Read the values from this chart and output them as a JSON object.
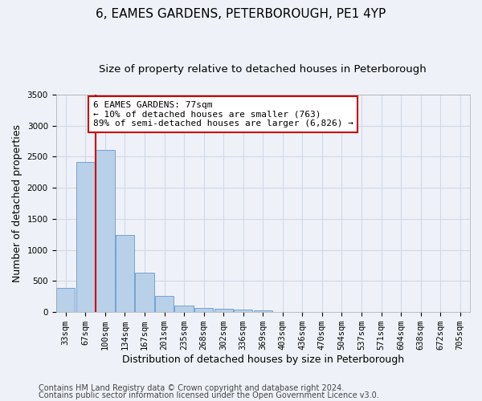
{
  "title": "6, EAMES GARDENS, PETERBOROUGH, PE1 4YP",
  "subtitle": "Size of property relative to detached houses in Peterborough",
  "xlabel": "Distribution of detached houses by size in Peterborough",
  "ylabel": "Number of detached properties",
  "categories": [
    "33sqm",
    "67sqm",
    "100sqm",
    "134sqm",
    "167sqm",
    "201sqm",
    "235sqm",
    "268sqm",
    "302sqm",
    "336sqm",
    "369sqm",
    "403sqm",
    "436sqm",
    "470sqm",
    "504sqm",
    "537sqm",
    "571sqm",
    "604sqm",
    "638sqm",
    "672sqm",
    "705sqm"
  ],
  "values": [
    390,
    2420,
    2610,
    1240,
    640,
    260,
    105,
    65,
    60,
    45,
    30,
    0,
    0,
    0,
    0,
    0,
    0,
    0,
    0,
    0,
    0
  ],
  "bar_color": "#b8d0e8",
  "bar_edge_color": "#6699cc",
  "grid_color": "#d0d8e8",
  "bg_color": "#eef2f8",
  "vline_color": "#cc0000",
  "annotation_text": "6 EAMES GARDENS: 77sqm\n← 10% of detached houses are smaller (763)\n89% of semi-detached houses are larger (6,826) →",
  "annotation_box_color": "#cc0000",
  "ylim": [
    0,
    3500
  ],
  "yticks": [
    0,
    500,
    1000,
    1500,
    2000,
    2500,
    3000,
    3500
  ],
  "footer1": "Contains HM Land Registry data © Crown copyright and database right 2024.",
  "footer2": "Contains public sector information licensed under the Open Government Licence v3.0.",
  "title_fontsize": 11,
  "subtitle_fontsize": 9.5,
  "axis_label_fontsize": 9,
  "tick_fontsize": 7.5,
  "footer_fontsize": 7,
  "annotation_fontsize": 8
}
